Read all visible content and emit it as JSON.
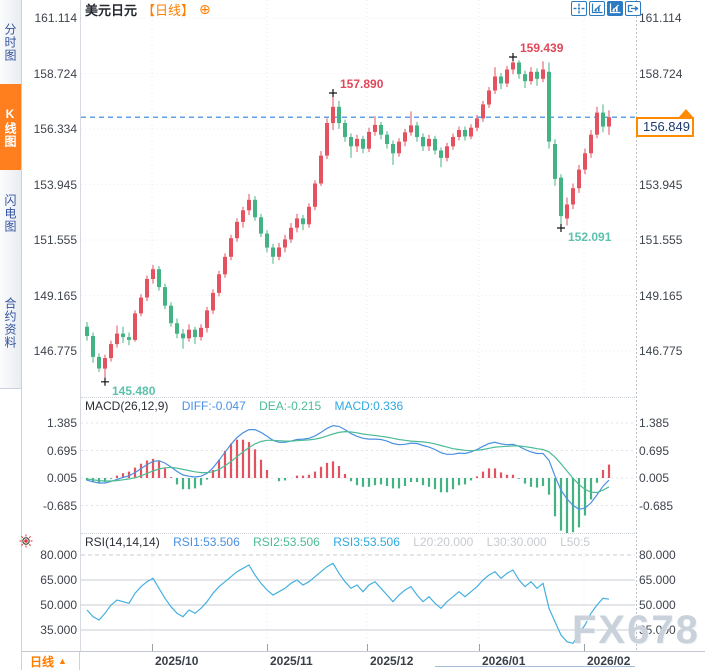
{
  "header": {
    "symbol": "美元日元",
    "period_tag": "【日线】",
    "add_icon": "⊕"
  },
  "sidebar": {
    "tabs": [
      {
        "name": "tab-time-share-chart",
        "label": "分时图",
        "active": false
      },
      {
        "name": "tab-kline-chart",
        "label": "K线图",
        "active": true
      },
      {
        "name": "tab-lightning-chart",
        "label": "闪电图",
        "active": false
      },
      {
        "name": "tab-contract-info",
        "label": "合约资料",
        "active": false
      }
    ]
  },
  "toolbar": {
    "icons": [
      {
        "name": "crosshair-icon",
        "active": false
      },
      {
        "name": "zoom-scale-icon",
        "active": false
      },
      {
        "name": "pan-scale-icon",
        "active": true
      },
      {
        "name": "exit-chart-icon",
        "active": false
      }
    ]
  },
  "price_badge": {
    "value": "156.849",
    "direction": "up"
  },
  "bottom_bar": {
    "period_label": "日线",
    "arrow": "▲"
  },
  "watermark": "FX678",
  "colors": {
    "up": "#e4525f",
    "down": "#43b383",
    "annotation_high": "#e0485a",
    "annotation_low": "#5cc2ae",
    "dashed_line": "#2b82e0",
    "orange": "#ff7e00",
    "diff_line": "#4a90e2",
    "dea_line": "#4cbb95",
    "rsi_line": "#45b0df",
    "marker": "#111111"
  },
  "chart_data": {
    "type": "candlestick",
    "symbol": "美元日元",
    "period": "日线",
    "current_price": 156.849,
    "price_axis_ticks": [
      161.114,
      158.724,
      156.334,
      153.945,
      151.555,
      149.165,
      146.775
    ],
    "x_axis_ticks": [
      "2025/10",
      "2025/11",
      "2025/12",
      "2026/01",
      "2026/02"
    ],
    "annotations": [
      {
        "candle_index": 3,
        "price": 145.48,
        "label": "145.480",
        "type": "low"
      },
      {
        "candle_index": 41,
        "price": 157.89,
        "label": "157.890",
        "type": "high"
      },
      {
        "candle_index": 71,
        "price": 159.439,
        "label": "159.439",
        "type": "high"
      },
      {
        "candle_index": 79,
        "price": 152.091,
        "label": "152.091",
        "type": "low"
      }
    ],
    "candles_ohlc": [
      [
        147.85,
        148.05,
        147.25,
        147.45
      ],
      [
        147.45,
        147.6,
        146.3,
        146.55
      ],
      [
        146.55,
        146.7,
        145.9,
        146.05
      ],
      [
        146.05,
        146.65,
        145.48,
        146.5
      ],
      [
        146.5,
        147.25,
        146.35,
        147.1
      ],
      [
        147.1,
        147.9,
        146.95,
        147.55
      ],
      [
        147.55,
        147.85,
        147.15,
        147.4
      ],
      [
        147.4,
        147.6,
        147.05,
        147.28
      ],
      [
        147.28,
        148.55,
        147.2,
        148.42
      ],
      [
        148.42,
        149.25,
        148.3,
        149.1
      ],
      [
        149.1,
        150.05,
        148.95,
        149.9
      ],
      [
        149.9,
        150.5,
        149.7,
        150.32
      ],
      [
        150.32,
        150.45,
        149.4,
        149.55
      ],
      [
        149.55,
        149.7,
        148.6,
        148.75
      ],
      [
        148.75,
        148.9,
        147.85,
        148.0
      ],
      [
        148.0,
        148.2,
        147.35,
        147.55
      ],
      [
        147.55,
        147.75,
        146.9,
        147.35
      ],
      [
        147.35,
        147.95,
        147.2,
        147.72
      ],
      [
        147.72,
        147.85,
        147.1,
        147.4
      ],
      [
        147.4,
        147.95,
        147.25,
        147.8
      ],
      [
        147.8,
        148.7,
        147.6,
        148.55
      ],
      [
        148.55,
        149.45,
        148.4,
        149.3
      ],
      [
        149.3,
        150.25,
        149.15,
        150.1
      ],
      [
        150.1,
        151.0,
        149.95,
        150.85
      ],
      [
        150.85,
        151.8,
        150.7,
        151.65
      ],
      [
        151.65,
        152.5,
        151.5,
        152.35
      ],
      [
        152.35,
        153.0,
        152.1,
        152.85
      ],
      [
        152.85,
        153.55,
        152.65,
        153.3
      ],
      [
        153.3,
        153.45,
        152.4,
        152.55
      ],
      [
        152.55,
        152.7,
        151.7,
        151.85
      ],
      [
        151.85,
        152.0,
        151.05,
        151.25
      ],
      [
        151.25,
        151.4,
        150.55,
        150.85
      ],
      [
        150.85,
        151.45,
        150.7,
        151.25
      ],
      [
        151.25,
        151.8,
        151.05,
        151.6
      ],
      [
        151.6,
        152.3,
        151.45,
        152.1
      ],
      [
        152.1,
        152.7,
        151.9,
        152.5
      ],
      [
        152.5,
        152.65,
        152.0,
        152.25
      ],
      [
        152.25,
        153.15,
        152.1,
        153.0
      ],
      [
        153.0,
        154.15,
        152.85,
        154.0
      ],
      [
        154.0,
        155.4,
        153.9,
        155.2
      ],
      [
        155.2,
        156.8,
        155.05,
        156.6
      ],
      [
        156.6,
        157.89,
        156.3,
        157.3
      ],
      [
        157.3,
        157.55,
        156.35,
        156.6
      ],
      [
        156.6,
        156.75,
        155.8,
        156.0
      ],
      [
        156.0,
        156.15,
        155.1,
        155.6
      ],
      [
        155.6,
        156.1,
        155.35,
        155.92
      ],
      [
        155.92,
        156.05,
        155.3,
        155.5
      ],
      [
        155.5,
        156.4,
        155.35,
        156.22
      ],
      [
        156.22,
        156.9,
        156.05,
        156.52
      ],
      [
        156.52,
        156.65,
        155.9,
        156.1
      ],
      [
        156.1,
        156.25,
        155.5,
        155.7
      ],
      [
        155.7,
        155.85,
        154.8,
        155.3
      ],
      [
        155.3,
        155.95,
        155.15,
        155.8
      ],
      [
        155.8,
        156.35,
        155.6,
        156.2
      ],
      [
        156.2,
        157.1,
        156.05,
        156.5
      ],
      [
        156.5,
        156.65,
        155.8,
        156.0
      ],
      [
        156.0,
        156.15,
        155.4,
        155.6
      ],
      [
        155.6,
        156.1,
        155.4,
        155.92
      ],
      [
        155.92,
        156.05,
        155.25,
        155.42
      ],
      [
        155.42,
        155.55,
        154.7,
        155.1
      ],
      [
        155.1,
        155.75,
        154.95,
        155.6
      ],
      [
        155.6,
        156.15,
        155.45,
        156.0
      ],
      [
        156.0,
        156.45,
        155.85,
        156.3
      ],
      [
        156.3,
        156.45,
        155.85,
        156.02
      ],
      [
        156.02,
        156.55,
        155.9,
        156.4
      ],
      [
        156.4,
        156.95,
        156.25,
        156.8
      ],
      [
        156.8,
        157.55,
        156.65,
        157.4
      ],
      [
        157.4,
        158.15,
        157.25,
        158.0
      ],
      [
        158.0,
        159.0,
        157.85,
        158.6
      ],
      [
        158.6,
        158.75,
        158.05,
        158.3
      ],
      [
        158.3,
        159.05,
        158.15,
        158.9
      ],
      [
        158.9,
        159.439,
        158.7,
        159.2
      ],
      [
        159.2,
        159.3,
        158.5,
        158.7
      ],
      [
        158.7,
        158.85,
        158.1,
        158.4
      ],
      [
        158.4,
        159.0,
        158.25,
        158.8
      ],
      [
        158.8,
        158.95,
        158.2,
        158.5
      ],
      [
        158.5,
        159.25,
        158.35,
        158.9
      ],
      [
        158.8,
        159.2,
        155.5,
        155.8
      ],
      [
        155.7,
        155.9,
        153.9,
        154.2
      ],
      [
        154.25,
        154.4,
        152.091,
        152.6
      ],
      [
        152.5,
        153.4,
        152.2,
        153.1
      ],
      [
        153.1,
        154.0,
        152.9,
        153.8
      ],
      [
        153.8,
        154.8,
        153.6,
        154.6
      ],
      [
        154.6,
        155.5,
        154.4,
        155.3
      ],
      [
        155.3,
        156.3,
        155.1,
        156.1
      ],
      [
        156.1,
        157.3,
        155.95,
        157.05
      ],
      [
        157.05,
        157.4,
        156.2,
        156.45
      ],
      [
        156.45,
        157.15,
        156.1,
        156.849
      ]
    ],
    "indicators": {
      "macd": {
        "label": "MACD(26,12,9)",
        "diff_text": "DIFF:-0.047",
        "dea_text": "DEA:-0.215",
        "macd_text": "MACD:0.336",
        "axis_ticks": [
          1.385,
          0.695,
          0.005,
          -0.685
        ],
        "diff": [
          -0.05,
          -0.09,
          -0.12,
          -0.12,
          -0.08,
          -0.03,
          0.02,
          0.06,
          0.14,
          0.24,
          0.34,
          0.42,
          0.44,
          0.38,
          0.28,
          0.17,
          0.08,
          0.05,
          0.03,
          0.05,
          0.12,
          0.26,
          0.45,
          0.65,
          0.85,
          1.02,
          1.14,
          1.22,
          1.22,
          1.15,
          1.05,
          0.95,
          0.9,
          0.9,
          0.93,
          0.97,
          0.98,
          1.0,
          1.06,
          1.15,
          1.25,
          1.32,
          1.3,
          1.22,
          1.12,
          1.05,
          1.0,
          0.98,
          0.98,
          0.97,
          0.93,
          0.87,
          0.84,
          0.85,
          0.88,
          0.87,
          0.82,
          0.78,
          0.72,
          0.64,
          0.6,
          0.6,
          0.63,
          0.62,
          0.66,
          0.72,
          0.8,
          0.87,
          0.9,
          0.86,
          0.84,
          0.85,
          0.8,
          0.72,
          0.66,
          0.62,
          0.62,
          0.45,
          0.05,
          -0.3,
          -0.52,
          -0.68,
          -0.78,
          -0.75,
          -0.62,
          -0.42,
          -0.2,
          -0.047
        ],
        "dea": [
          -0.02,
          -0.04,
          -0.06,
          -0.07,
          -0.07,
          -0.06,
          -0.04,
          -0.02,
          0.01,
          0.06,
          0.12,
          0.18,
          0.23,
          0.26,
          0.27,
          0.25,
          0.22,
          0.19,
          0.16,
          0.14,
          0.14,
          0.16,
          0.22,
          0.31,
          0.42,
          0.54,
          0.66,
          0.77,
          0.86,
          0.92,
          0.95,
          0.95,
          0.94,
          0.93,
          0.93,
          0.94,
          0.95,
          0.96,
          0.98,
          1.01,
          1.06,
          1.11,
          1.15,
          1.17,
          1.16,
          1.14,
          1.11,
          1.09,
          1.07,
          1.05,
          1.03,
          1.0,
          0.97,
          0.95,
          0.93,
          0.92,
          0.91,
          0.89,
          0.86,
          0.82,
          0.78,
          0.74,
          0.72,
          0.7,
          0.69,
          0.7,
          0.72,
          0.75,
          0.78,
          0.79,
          0.8,
          0.81,
          0.81,
          0.79,
          0.77,
          0.74,
          0.72,
          0.66,
          0.53,
          0.36,
          0.18,
          0.0,
          -0.16,
          -0.28,
          -0.35,
          -0.36,
          -0.3,
          -0.215
        ]
      },
      "rsi": {
        "label": "RSI(14,14,14)",
        "rsi1_text": "RSI1:53.506",
        "rsi2_text": "RSI2:53.506",
        "rsi3_text": "RSI3:53.506",
        "l20_text": "L20:20.000",
        "l30_text": "L30:30.000",
        "l50_text": "L50:5",
        "axis_ticks": [
          80.0,
          65.0,
          50.0,
          35.0
        ],
        "values": [
          47,
          43,
          41,
          45,
          50,
          53,
          52,
          51,
          57,
          61,
          64,
          66,
          60,
          54,
          49,
          45,
          43,
          47,
          45,
          48,
          52,
          57,
          61,
          64,
          67,
          70,
          72,
          74,
          68,
          63,
          59,
          56,
          58,
          60,
          63,
          65,
          62,
          64,
          67,
          70,
          73,
          75,
          69,
          64,
          60,
          62,
          58,
          62,
          64,
          60,
          56,
          52,
          56,
          59,
          61,
          56,
          52,
          55,
          51,
          48,
          52,
          55,
          58,
          55,
          58,
          61,
          65,
          68,
          70,
          66,
          69,
          71,
          65,
          61,
          64,
          60,
          63,
          48,
          40,
          32,
          28,
          27,
          33,
          38,
          45,
          50,
          54,
          53.5
        ]
      }
    }
  }
}
